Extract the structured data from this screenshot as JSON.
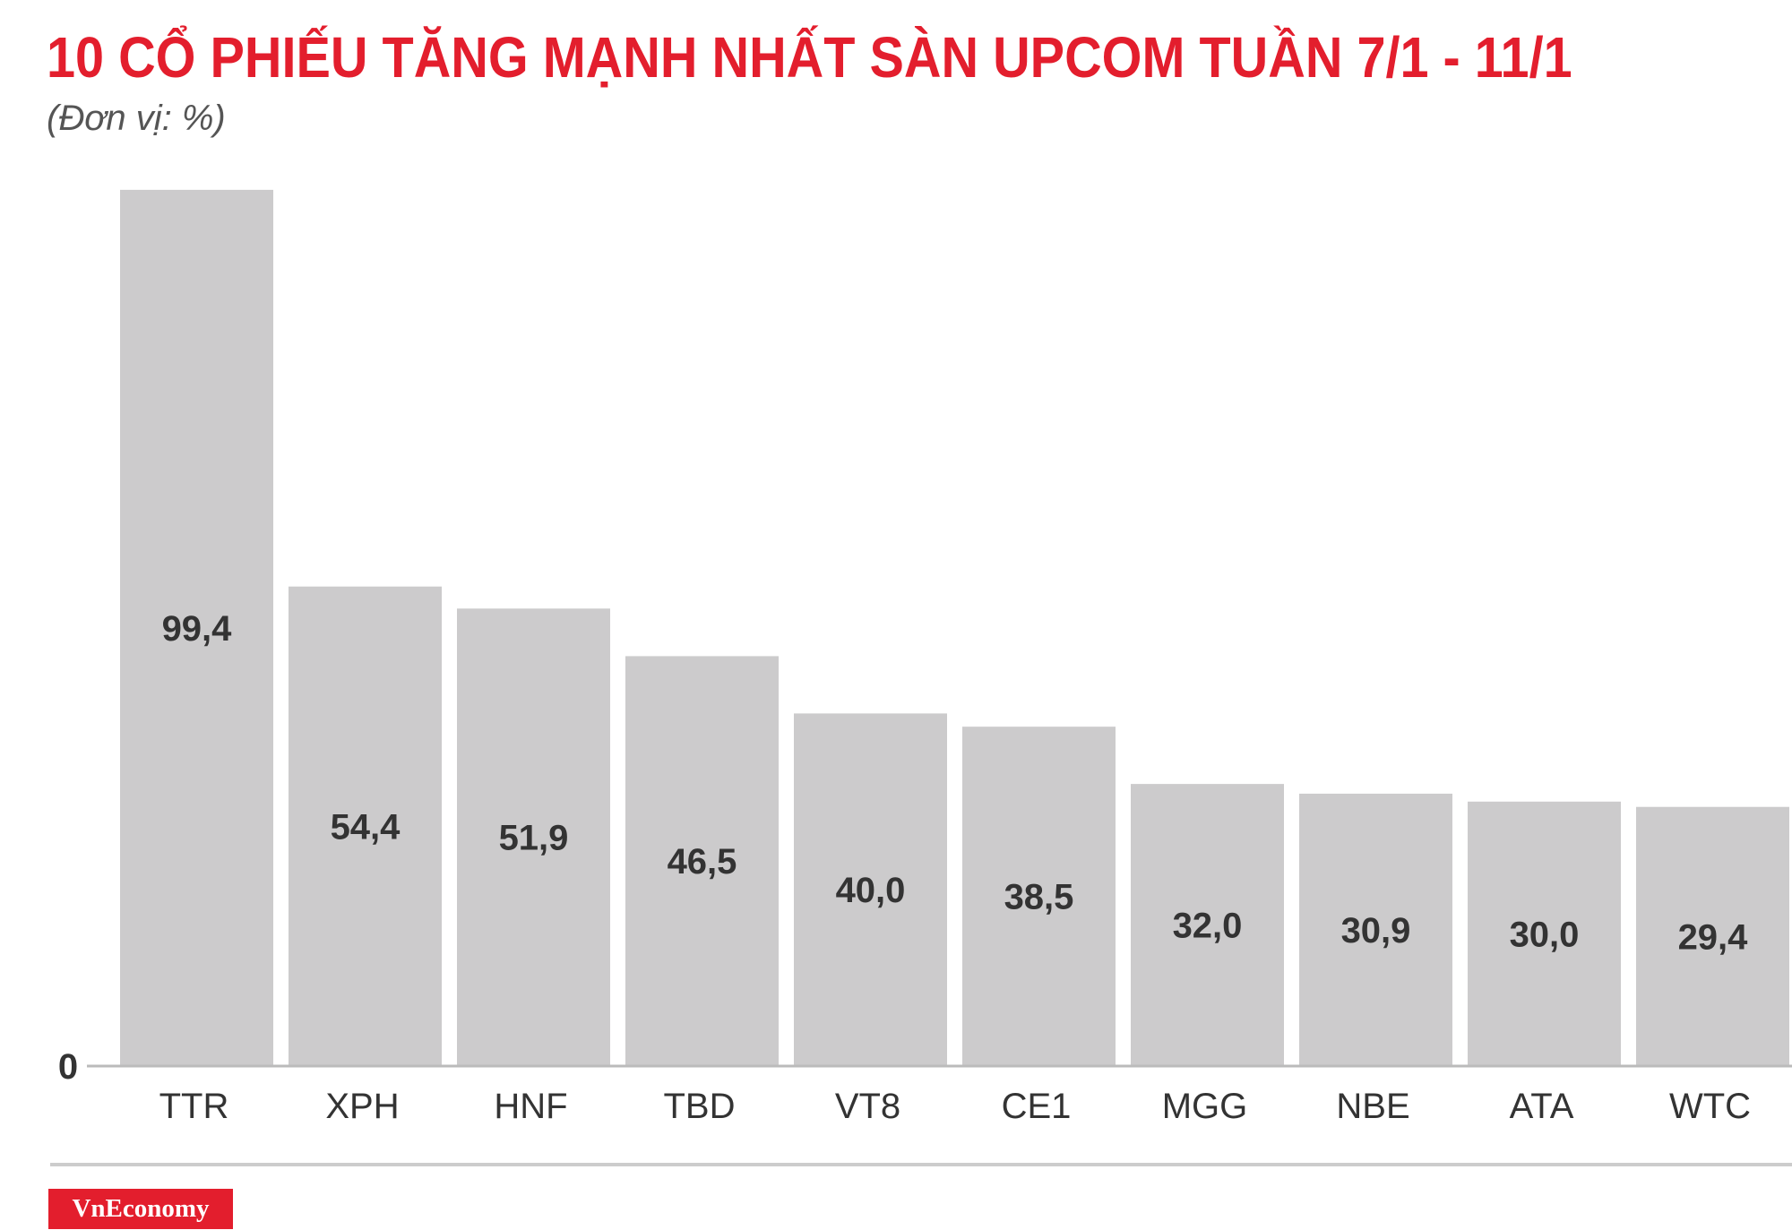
{
  "header": {
    "title": "10 CỔ PHIẾU TĂNG MẠNH NHẤT SÀN UPCOM TUẦN 7/1 - 11/1",
    "subtitle": "(Đơn vị: %)"
  },
  "footer": {
    "brand": "VnEconomy",
    "brand_color": "#e31e2d"
  },
  "colors": {
    "bar": "#cccbcc",
    "value_label": "#333333",
    "axis": "#bbbbbb",
    "category_label": "#333333"
  },
  "chart_data": {
    "type": "bar",
    "title": "10 CỔ PHIẾU TĂNG MẠNH NHẤT SÀN UPCOM TUẦN 7/1 - 11/1",
    "subtitle": "(Đơn vị: %)",
    "categories": [
      "TTR",
      "XPH",
      "HNF",
      "TBD",
      "VT8",
      "CE1",
      "MGG",
      "NBE",
      "ATA",
      "WTC"
    ],
    "values": [
      99.4,
      54.4,
      51.9,
      46.5,
      40.0,
      38.5,
      32.0,
      30.9,
      30.0,
      29.4
    ],
    "value_labels": [
      "99,4",
      "54,4",
      "51,9",
      "46,5",
      "40,0",
      "38,5",
      "32,0",
      "30,9",
      "30,0",
      "29,4"
    ],
    "y_tick_labels": [
      "0"
    ],
    "xlabel": "",
    "ylabel": "",
    "ylim": [
      0,
      100
    ],
    "grid": false,
    "legend": "none"
  }
}
